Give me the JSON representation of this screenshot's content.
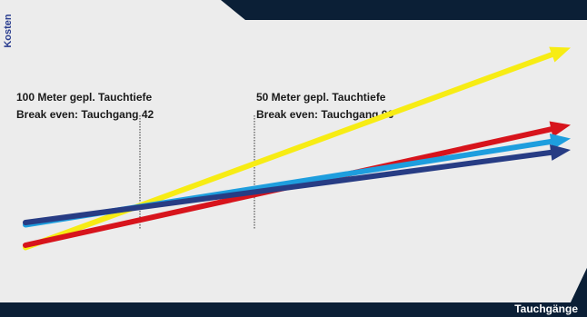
{
  "chart_data": {
    "type": "line",
    "title": "",
    "xlabel": "Tauchgänge",
    "ylabel": "Kosten",
    "grid": false,
    "legend": "none",
    "xlim": [
      0,
      100
    ],
    "ylim": [
      0,
      100
    ],
    "series": [
      {
        "color": "#f7ec14",
        "values": [
          [
            0,
            7
          ],
          [
            100,
            95
          ]
        ]
      },
      {
        "color": "#d7141c",
        "values": [
          [
            0,
            8
          ],
          [
            100,
            61
          ]
        ]
      },
      {
        "color": "#1e9ede",
        "values": [
          [
            0,
            17
          ],
          [
            100,
            55
          ]
        ]
      },
      {
        "color": "#273c84",
        "values": [
          [
            0,
            18
          ],
          [
            100,
            50
          ]
        ]
      }
    ],
    "annotations": [
      {
        "lines": [
          "100 Meter gepl. Tauchtiefe",
          "Break even: Tauchgang 42"
        ],
        "x": 21
      },
      {
        "lines": [
          "50 Meter gepl. Tauchtiefe",
          "Break even: Tauchgang 96"
        ],
        "x": 42
      }
    ]
  }
}
